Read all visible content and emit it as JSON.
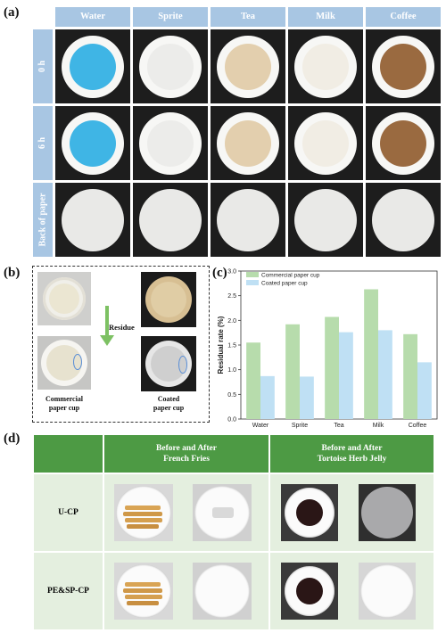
{
  "panel_a": {
    "label": "(a)",
    "columns": [
      "Water",
      "Sprite",
      "Tea",
      "Milk",
      "Coffee"
    ],
    "rows": [
      "0 h",
      "6 h",
      "Back of paper"
    ],
    "fill_colors": {
      "Water": "#3fb5e5",
      "Sprite": "#ececea",
      "Tea": "#e3cfae",
      "Milk": "#f1ede4",
      "Coffee": "#9a6a40"
    }
  },
  "panel_b": {
    "label": "(b)",
    "arrow_label": "Residue",
    "left_caption": "Commercial\npaper cup",
    "right_caption": "Coated\npaper cup"
  },
  "panel_c": {
    "label": "(c)"
  },
  "chart_data": {
    "type": "bar",
    "categories": [
      "Water",
      "Sprite",
      "Tea",
      "Milk",
      "Coffee"
    ],
    "series": [
      {
        "name": "Commercial paper cup",
        "values": [
          1.55,
          1.92,
          2.07,
          2.63,
          1.72
        ],
        "color": "#b7dcac"
      },
      {
        "name": "Coated paper cup",
        "values": [
          0.87,
          0.86,
          1.76,
          1.8,
          1.15
        ],
        "color": "#bfe0f4"
      }
    ],
    "ylabel": "Residual rate (%)",
    "ylim": [
      0,
      3.0
    ],
    "yticks": [
      "0.0",
      "0.5",
      "1.0",
      "1.5",
      "2.0",
      "2.5",
      "3.0"
    ],
    "legend_position": "top-left"
  },
  "panel_d": {
    "label": "(d)",
    "header_1": "Before and After\nFrench Fries",
    "header_2": "Before and After\nTortoise Herb Jelly",
    "row_1": "U-CP",
    "row_2": "PE&SP-CP"
  },
  "colors": {
    "header_blue": "#a8c6e3",
    "table_green": "#4d9a44",
    "table_light": "#e4efdf"
  }
}
